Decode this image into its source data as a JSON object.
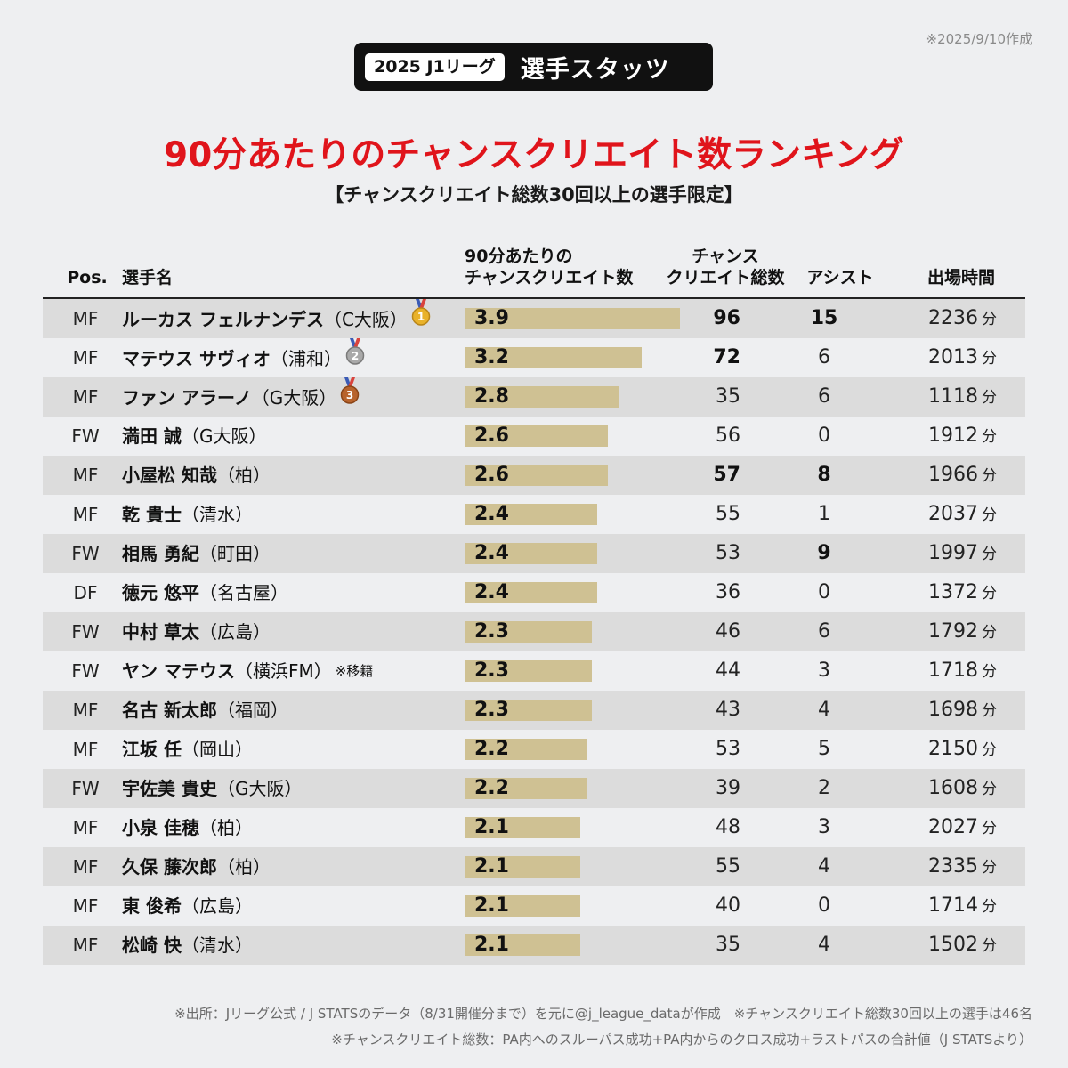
{
  "header": {
    "date_note": "※2025/9/10作成",
    "badge_pill": "2025 J1リーグ",
    "badge_text": "選手スタッツ"
  },
  "title": "90分あたりのチャンスクリエイト数ランキング",
  "subtitle": "【チャンスクリエイト総数30回以上の選手限定】",
  "columns": {
    "pos": "Pos.",
    "name": "選手名",
    "per90_line1": "90分あたりの",
    "per90_line2": "チャンスクリエイト数",
    "total_line1": "チャンス",
    "total_line2": "クリエイト総数",
    "assist": "アシスト",
    "minutes": "出場時間"
  },
  "minutes_unit": "分",
  "colors": {
    "title_red": "#e0141b",
    "bar": "#cfc193",
    "row_shade": "#dcdcdc",
    "background": "#eeeff1"
  },
  "chart_data": {
    "type": "table",
    "title": "90分あたりのチャンスクリエイト数ランキング",
    "subtitle": "【チャンスクリエイト総数30回以上の選手限定】",
    "bar_max": 3.9,
    "rows": [
      {
        "pos": "MF",
        "name": "ルーカス フェルナンデス",
        "club": "（C大阪）",
        "medal": "1",
        "per90": 3.9,
        "total": 96,
        "assist": 15,
        "minutes": 2236,
        "bold_total": true,
        "bold_assist": true
      },
      {
        "pos": "MF",
        "name": "マテウス サヴィオ",
        "club": "（浦和）",
        "medal": "2",
        "per90": 3.2,
        "total": 72,
        "assist": 6,
        "minutes": 2013,
        "bold_total": true,
        "bold_assist": false
      },
      {
        "pos": "MF",
        "name": "ファン アラーノ",
        "club": "（G大阪）",
        "medal": "3",
        "per90": 2.8,
        "total": 35,
        "assist": 6,
        "minutes": 1118,
        "bold_total": false,
        "bold_assist": false
      },
      {
        "pos": "FW",
        "name": "満田 誠",
        "club": "（G大阪）",
        "per90": 2.6,
        "total": 56,
        "assist": 0,
        "minutes": 1912,
        "bold_total": false,
        "bold_assist": false
      },
      {
        "pos": "MF",
        "name": "小屋松 知哉",
        "club": "（柏）",
        "per90": 2.6,
        "total": 57,
        "assist": 8,
        "minutes": 1966,
        "bold_total": true,
        "bold_assist": true
      },
      {
        "pos": "MF",
        "name": "乾 貴士",
        "club": "（清水）",
        "per90": 2.4,
        "total": 55,
        "assist": 1,
        "minutes": 2037,
        "bold_total": false,
        "bold_assist": false
      },
      {
        "pos": "FW",
        "name": "相馬 勇紀",
        "club": "（町田）",
        "per90": 2.4,
        "total": 53,
        "assist": 9,
        "minutes": 1997,
        "bold_total": false,
        "bold_assist": true
      },
      {
        "pos": "DF",
        "name": "徳元 悠平",
        "club": "（名古屋）",
        "per90": 2.4,
        "total": 36,
        "assist": 0,
        "minutes": 1372,
        "bold_total": false,
        "bold_assist": false
      },
      {
        "pos": "FW",
        "name": "中村 草太",
        "club": "（広島）",
        "per90": 2.3,
        "total": 46,
        "assist": 6,
        "minutes": 1792,
        "bold_total": false,
        "bold_assist": false
      },
      {
        "pos": "FW",
        "name": "ヤン マテウス",
        "club": "（横浜FM）",
        "note": "※移籍",
        "per90": 2.3,
        "total": 44,
        "assist": 3,
        "minutes": 1718,
        "bold_total": false,
        "bold_assist": false
      },
      {
        "pos": "MF",
        "name": "名古 新太郎",
        "club": "（福岡）",
        "per90": 2.3,
        "total": 43,
        "assist": 4,
        "minutes": 1698,
        "bold_total": false,
        "bold_assist": false
      },
      {
        "pos": "MF",
        "name": "江坂 任",
        "club": "（岡山）",
        "per90": 2.2,
        "total": 53,
        "assist": 5,
        "minutes": 2150,
        "bold_total": false,
        "bold_assist": false
      },
      {
        "pos": "FW",
        "name": "宇佐美 貴史",
        "club": "（G大阪）",
        "per90": 2.2,
        "total": 39,
        "assist": 2,
        "minutes": 1608,
        "bold_total": false,
        "bold_assist": false
      },
      {
        "pos": "MF",
        "name": "小泉 佳穂",
        "club": "（柏）",
        "per90": 2.1,
        "total": 48,
        "assist": 3,
        "minutes": 2027,
        "bold_total": false,
        "bold_assist": false
      },
      {
        "pos": "MF",
        "name": "久保 藤次郎",
        "club": "（柏）",
        "per90": 2.1,
        "total": 55,
        "assist": 4,
        "minutes": 2335,
        "bold_total": false,
        "bold_assist": false
      },
      {
        "pos": "MF",
        "name": "東 俊希",
        "club": "（広島）",
        "per90": 2.1,
        "total": 40,
        "assist": 0,
        "minutes": 1714,
        "bold_total": false,
        "bold_assist": false
      },
      {
        "pos": "MF",
        "name": "松崎 快",
        "club": "（清水）",
        "per90": 2.1,
        "total": 35,
        "assist": 4,
        "minutes": 1502,
        "bold_total": false,
        "bold_assist": false
      }
    ]
  },
  "footer": {
    "line1": "※出所：Jリーグ公式 / J STATSのデータ（8/31開催分まで）を元に@j_league_dataが作成　※チャンスクリエイト総数30回以上の選手は46名",
    "line2": "※チャンスクリエイト総数：PA内へのスルーパス成功+PA内からのクロス成功+ラストパスの合計値（J STATSより）"
  }
}
